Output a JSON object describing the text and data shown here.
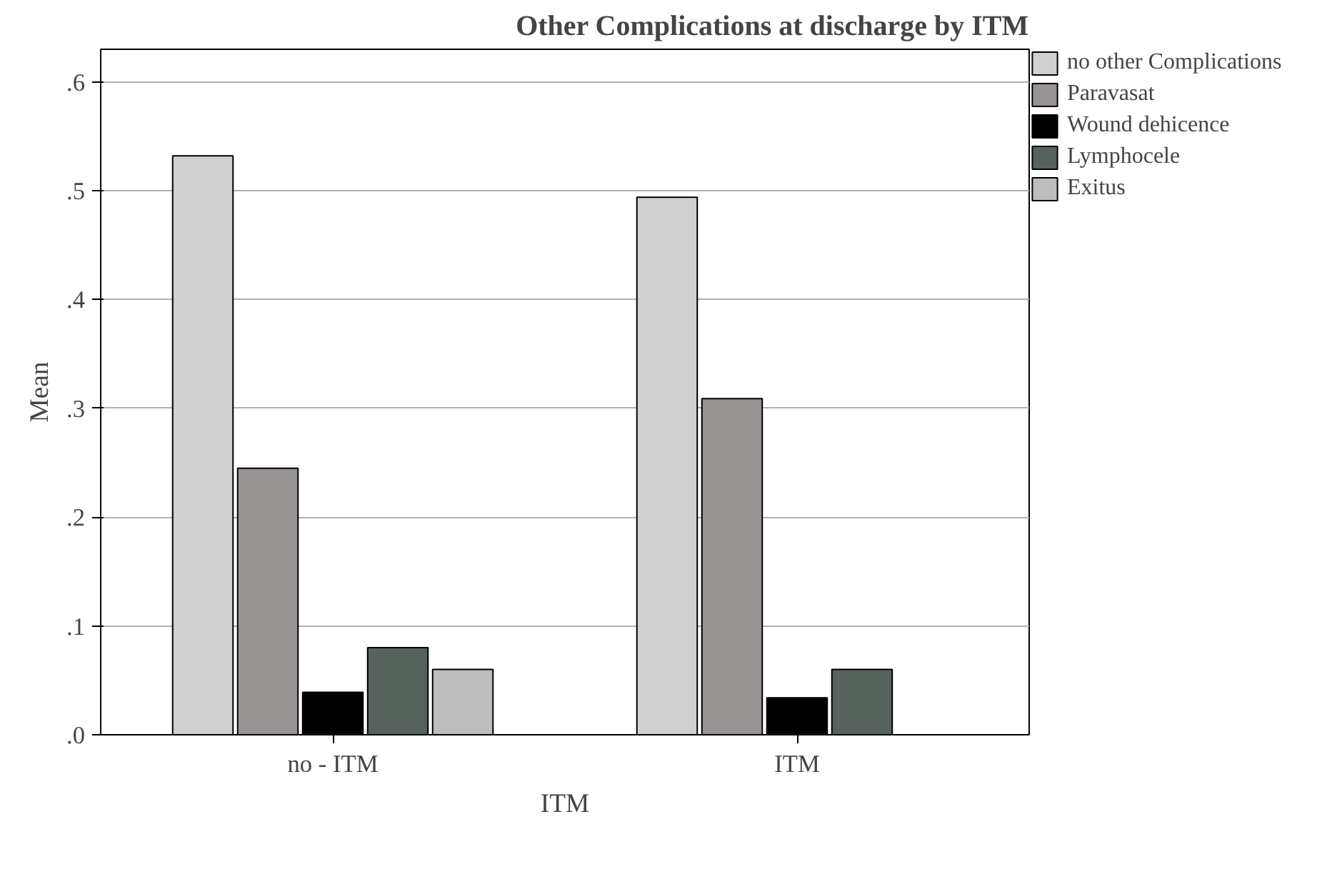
{
  "chart_data": {
    "type": "bar",
    "title": "Other Complications at discharge by ITM",
    "xlabel": "ITM",
    "ylabel": "Mean",
    "categories": [
      "no - ITM",
      "ITM"
    ],
    "series": [
      {
        "name": "no other Complications",
        "color": "#d0d0d0",
        "values": [
          0.532,
          0.494
        ]
      },
      {
        "name": "Paravasat",
        "color": "#979393",
        "values": [
          0.245,
          0.309
        ]
      },
      {
        "name": "Wound dehicence",
        "color": "#000000",
        "values": [
          0.039,
          0.034
        ]
      },
      {
        "name": "Lymphocele",
        "color": "#57625d",
        "values": [
          0.08,
          0.06
        ]
      },
      {
        "name": "Exitus",
        "color": "#bdbdbd",
        "values": [
          0.06,
          null
        ]
      }
    ],
    "ylim": [
      0,
      0.63
    ],
    "yticks": [
      {
        "value": 0,
        "label": ".0"
      },
      {
        "value": 0.1,
        "label": ".1"
      },
      {
        "value": 0.2,
        "label": ".2"
      },
      {
        "value": 0.3,
        "label": ".3"
      },
      {
        "value": 0.4,
        "label": ".4"
      },
      {
        "value": 0.5,
        "label": ".5"
      },
      {
        "value": 0.6,
        "label": ".6"
      }
    ],
    "grid": "y",
    "legend": "top right"
  }
}
